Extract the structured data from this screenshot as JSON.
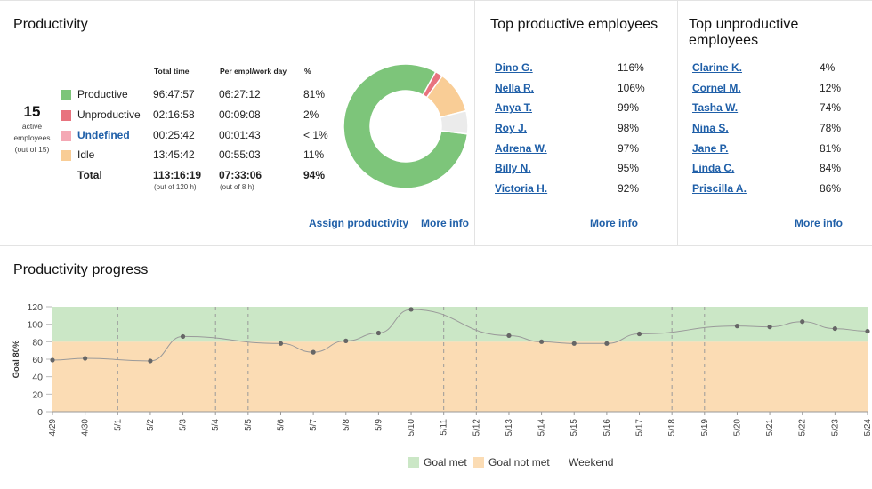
{
  "productivity": {
    "title": "Productivity",
    "active_count": "15",
    "active_label_1": "active",
    "active_label_2": "employees",
    "active_label_3": "(out of 15)",
    "headers": {
      "total": "Total time",
      "per": "Per empl/work day",
      "pct": "%"
    },
    "rows": [
      {
        "label": "Productive",
        "total": "96:47:57",
        "per": "06:27:12",
        "pct": "81%",
        "color": "#7dc57a"
      },
      {
        "label": "Unproductive",
        "total": "02:16:58",
        "per": "00:09:08",
        "pct": "2%",
        "color": "#e8737e"
      },
      {
        "label": "Undefined",
        "total": "00:25:42",
        "per": "00:01:43",
        "pct": "< 1%",
        "color": "#f4a8b4"
      },
      {
        "label": "Idle",
        "total": "13:45:42",
        "per": "00:55:03",
        "pct": "11%",
        "color": "#f9cd96"
      }
    ],
    "total": {
      "label": "Total",
      "total": "113:16:19",
      "total_sub": "(out of 120 h)",
      "per": "07:33:06",
      "per_sub": "(out of 8 h)",
      "pct": "94%"
    },
    "assign_link": "Assign productivity",
    "more_info": "More info"
  },
  "donut": {
    "segments": [
      {
        "name": "Productive",
        "value": 81,
        "color": "#7dc57a"
      },
      {
        "name": "Unproductive",
        "value": 2,
        "color": "#e8737e"
      },
      {
        "name": "Idle",
        "value": 11,
        "color": "#f9cd96"
      },
      {
        "name": "Undefined",
        "value": 6,
        "color": "#ebebeb"
      }
    ]
  },
  "top_productive": {
    "title": "Top productive employees",
    "items": [
      {
        "name": "Dino G.",
        "pct": "116%"
      },
      {
        "name": "Nella R.",
        "pct": "106%"
      },
      {
        "name": "Anya T.",
        "pct": "99%"
      },
      {
        "name": "Roy J.",
        "pct": "98%"
      },
      {
        "name": "Adrena W.",
        "pct": "97%"
      },
      {
        "name": "Billy N.",
        "pct": "95%"
      },
      {
        "name": "Victoria H.",
        "pct": "92%"
      }
    ],
    "more_info": "More info"
  },
  "top_unproductive": {
    "title": "Top unproductive employees",
    "items": [
      {
        "name": "Clarine K.",
        "pct": "4%"
      },
      {
        "name": "Cornel M.",
        "pct": "12%"
      },
      {
        "name": "Tasha W.",
        "pct": "74%"
      },
      {
        "name": "Nina S.",
        "pct": "78%"
      },
      {
        "name": "Jane P.",
        "pct": "81%"
      },
      {
        "name": "Linda C.",
        "pct": "84%"
      },
      {
        "name": "Priscilla A.",
        "pct": "86%"
      }
    ],
    "more_info": "More info"
  },
  "progress": {
    "title": "Productivity progress",
    "legend": {
      "met": "Goal met",
      "not_met": "Goal not met",
      "weekend": "Weekend"
    },
    "colors": {
      "met": "#cbe7c6",
      "not_met": "#fbdcb4",
      "line": "#9a9a9a",
      "point": "#666666"
    }
  },
  "chart_data": {
    "type": "line",
    "ylabel": "Goal 80%",
    "ylim": [
      0,
      120
    ],
    "yticks": [
      0,
      20,
      40,
      60,
      80,
      100,
      120
    ],
    "goal": 80,
    "x": [
      "4/29",
      "4/30",
      "5/1",
      "5/2",
      "5/3",
      "5/4",
      "5/5",
      "5/6",
      "5/7",
      "5/8",
      "5/9",
      "5/10",
      "5/11",
      "5/12",
      "5/13",
      "5/14",
      "5/15",
      "5/16",
      "5/17",
      "5/18",
      "5/19",
      "5/20",
      "5/21",
      "5/22",
      "5/23",
      "5/24"
    ],
    "values": [
      59,
      61,
      null,
      58,
      86,
      null,
      null,
      78,
      68,
      81,
      90,
      117,
      null,
      null,
      87,
      80,
      78,
      78,
      89,
      null,
      null,
      98,
      97,
      103,
      95,
      92
    ],
    "weekend_dividers": [
      "5/1",
      "5/4",
      "5/5",
      "5/11",
      "5/12",
      "5/18",
      "5/19"
    ],
    "legend": [
      "Goal met",
      "Goal not met",
      "Weekend"
    ]
  }
}
